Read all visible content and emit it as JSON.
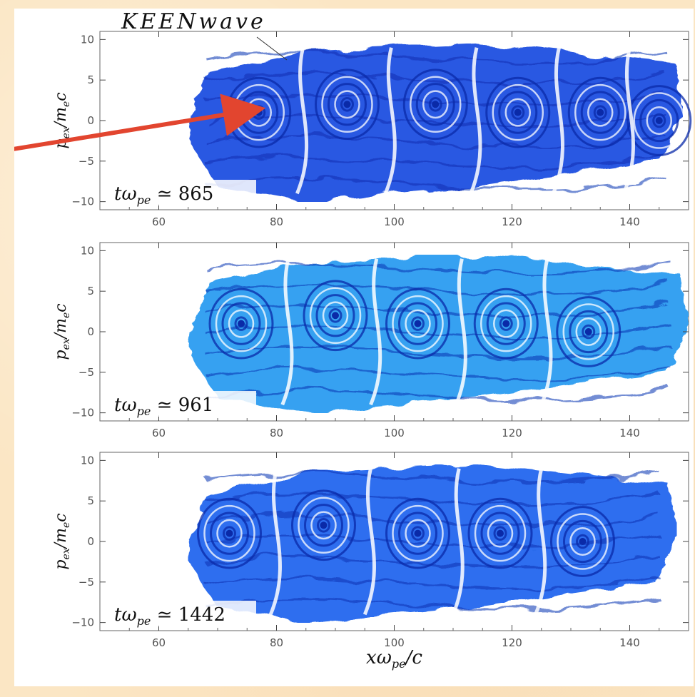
{
  "chart_data": [
    {
      "type": "heatmap",
      "panel": "top",
      "annotation_time": "tω_pe ≃ 865",
      "annotation_label": "KEENwave",
      "xlim": [
        50,
        150
      ],
      "ylim": [
        -11,
        11
      ],
      "xticks": [
        60,
        80,
        100,
        120,
        140
      ],
      "yticks": [
        10,
        5,
        0,
        -5,
        -10
      ],
      "ylabel": "p_ex/m_e c",
      "vortex_centers_x": [
        77,
        92,
        107,
        121,
        135,
        145
      ],
      "vortex_centers_y": [
        1,
        2,
        2,
        1,
        1,
        0
      ],
      "plasma_x_range": [
        65,
        149
      ],
      "color": "#1f4fe0"
    },
    {
      "type": "heatmap",
      "panel": "middle",
      "annotation_time": "tω_pe ≃ 961",
      "xlim": [
        50,
        150
      ],
      "ylim": [
        -11,
        11
      ],
      "xticks": [
        60,
        80,
        100,
        120,
        140
      ],
      "yticks": [
        10,
        5,
        0,
        -5,
        -10
      ],
      "ylabel": "p_ex/m_e c",
      "vortex_centers_x": [
        74,
        90,
        104,
        119,
        133
      ],
      "vortex_centers_y": [
        1,
        2,
        1,
        1,
        0
      ],
      "plasma_x_range": [
        65,
        150
      ],
      "color": "#2a9cf0"
    },
    {
      "type": "heatmap",
      "panel": "bottom",
      "annotation_time": "tω_pe ≃ 1442",
      "xlim": [
        50,
        150
      ],
      "ylim": [
        -11,
        11
      ],
      "xticks": [
        60,
        80,
        100,
        120,
        140
      ],
      "yticks": [
        10,
        5,
        0,
        -5,
        -10
      ],
      "ylabel": "p_ex/m_e c",
      "xlabel": "xω_pe/c",
      "vortex_centers_x": [
        72,
        88,
        104,
        118,
        132
      ],
      "vortex_centers_y": [
        1,
        2,
        1,
        1,
        0
      ],
      "plasma_x_range": [
        65,
        148
      ],
      "color": "#2266ee"
    }
  ],
  "tick_labels": {
    "x": [
      "60",
      "80",
      "100",
      "120",
      "140"
    ],
    "y": [
      "10",
      "5",
      "0",
      "−5",
      "−10"
    ]
  }
}
